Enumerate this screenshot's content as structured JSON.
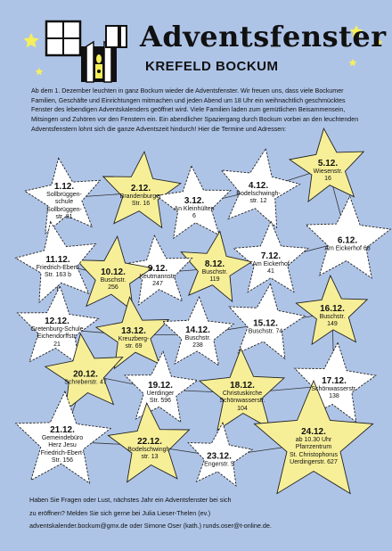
{
  "header": {
    "title": "Adventsfenster",
    "subtitle": "KREFELD BOCKUM"
  },
  "intro": "Ab dem 1. Dezember leuchten in ganz Bockum wieder die Adventsfenster. Wir freuen uns, dass viele Bockumer Familien, Geschäfte und Einrichtungen mitmachen und jeden Abend um 18 Uhr ein weihnachtlich geschmücktes Fenster des lebendigen Adventskalenders geöffnet wird. Viele Familien laden zum gemütlichen Beisammensein, Mitsingen und Zuhören vor den Fenstern ein. Ein abendlicher Spaziergang durch Bockum vorbei an den leuchtenden Adventsfenstern lohnt sich die ganze Adventszeit hindurch! Hier die Termine und Adressen:",
  "colors": {
    "background": "#aec4e7",
    "star_yellow": "#f7ef98",
    "star_white": "#ffffff",
    "outline": "#222222"
  },
  "stars": [
    {
      "date": "1.12.",
      "lines": [
        "Sollbrüggen-",
        "schule",
        "Sollbrüggen-",
        "str. 81"
      ],
      "fill": "white"
    },
    {
      "date": "2.12.",
      "lines": [
        "Brandenburger",
        "Str. 16"
      ],
      "fill": "yellow"
    },
    {
      "date": "3.12.",
      "lines": [
        "An Kleinhülten",
        "6"
      ],
      "fill": "white"
    },
    {
      "date": "4.12.",
      "lines": [
        "Bodelschwingh-",
        "str. 12"
      ],
      "fill": "white"
    },
    {
      "date": "5.12.",
      "lines": [
        "Wiesenstr.",
        "16"
      ],
      "fill": "yellow"
    },
    {
      "date": "6.12.",
      "lines": [
        "Am Eickerhof 68"
      ],
      "fill": "white"
    },
    {
      "date": "7.12.",
      "lines": [
        "Am Eickerhof",
        "41"
      ],
      "fill": "white"
    },
    {
      "date": "8.12.",
      "lines": [
        "Buschstr.",
        "119"
      ],
      "fill": "yellow"
    },
    {
      "date": "9.12.",
      "lines": [
        "Keutmannstr.",
        "247"
      ],
      "fill": "white"
    },
    {
      "date": "10.12.",
      "lines": [
        "Buschstr.",
        "256"
      ],
      "fill": "yellow"
    },
    {
      "date": "11.12.",
      "lines": [
        "Friedrich-Ebert-",
        "Str. 163 b"
      ],
      "fill": "white"
    },
    {
      "date": "12.12.",
      "lines": [
        "Gretenburg-Schule",
        "Eichendorffstr.",
        "21"
      ],
      "fill": "white"
    },
    {
      "date": "13.12.",
      "lines": [
        "Kreuzberg-",
        "str. 69"
      ],
      "fill": "yellow"
    },
    {
      "date": "14.12.",
      "lines": [
        "Buschstr.",
        "238"
      ],
      "fill": "white"
    },
    {
      "date": "15.12.",
      "lines": [
        "Buschstr. 74"
      ],
      "fill": "white"
    },
    {
      "date": "16.12.",
      "lines": [
        "Buschstr.",
        "149"
      ],
      "fill": "yellow"
    },
    {
      "date": "17.12.",
      "lines": [
        "Schönwasserstr.",
        "138"
      ],
      "fill": "white"
    },
    {
      "date": "18.12.",
      "lines": [
        "Christuskirche",
        "Schönwasserstr.",
        "104"
      ],
      "fill": "yellow"
    },
    {
      "date": "19.12.",
      "lines": [
        "Uerdinger",
        "Str. 596"
      ],
      "fill": "white"
    },
    {
      "date": "20.12.",
      "lines": [
        "Schreberstr. 47"
      ],
      "fill": "yellow"
    },
    {
      "date": "21.12.",
      "lines": [
        "Gemeindebüro",
        "Herz Jesu",
        "Friedrich-Ebert-",
        "Str. 156"
      ],
      "fill": "white"
    },
    {
      "date": "22.12.",
      "lines": [
        "Bodelschwingh-",
        "str. 13"
      ],
      "fill": "yellow"
    },
    {
      "date": "23.12.",
      "lines": [
        "Engerstr. 5"
      ],
      "fill": "white"
    },
    {
      "date": "24.12.",
      "lines": [
        "ab 10.30 Uhr",
        "Pfarrzentrum",
        "St. Christophorus",
        "Uerdingerstr. 627"
      ],
      "fill": "yellow"
    }
  ],
  "footer": {
    "line1": "Haben Sie Fragen oder Lust, nächstes Jahr ein Adventsfenster bei sich",
    "line2": "zu eröffnen? Melden Sie sich gerne bei Julia Lieser-Thelen (ev.)",
    "line3": "adventskalender.bockum@gmx.de oder Simone Oser (kath.) runds.oser@t-online.de."
  }
}
